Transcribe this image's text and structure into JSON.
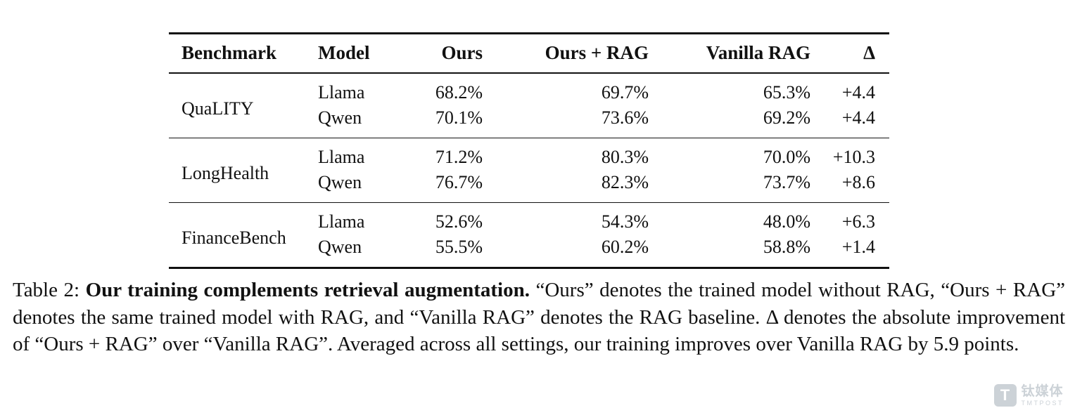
{
  "table": {
    "headers": [
      "Benchmark",
      "Model",
      "Ours",
      "Ours + RAG",
      "Vanilla RAG",
      "Δ"
    ],
    "groups": [
      {
        "benchmark": "QuaLITY",
        "rows": [
          {
            "model": "Llama",
            "ours": "68.2%",
            "ours_rag": "69.7%",
            "vanilla_rag": "65.3%",
            "delta": "+4.4"
          },
          {
            "model": "Qwen",
            "ours": "70.1%",
            "ours_rag": "73.6%",
            "vanilla_rag": "69.2%",
            "delta": "+4.4"
          }
        ]
      },
      {
        "benchmark": "LongHealth",
        "rows": [
          {
            "model": "Llama",
            "ours": "71.2%",
            "ours_rag": "80.3%",
            "vanilla_rag": "70.0%",
            "delta": "+10.3"
          },
          {
            "model": "Qwen",
            "ours": "76.7%",
            "ours_rag": "82.3%",
            "vanilla_rag": "73.7%",
            "delta": "+8.6"
          }
        ]
      },
      {
        "benchmark": "FinanceBench",
        "rows": [
          {
            "model": "Llama",
            "ours": "52.6%",
            "ours_rag": "54.3%",
            "vanilla_rag": "48.0%",
            "delta": "+6.3"
          },
          {
            "model": "Qwen",
            "ours": "55.5%",
            "ours_rag": "60.2%",
            "vanilla_rag": "58.8%",
            "delta": "+1.4"
          }
        ]
      }
    ]
  },
  "caption": {
    "prefix": "Table 2: ",
    "bold": "Our training complements retrieval augmentation.",
    "rest": " “Ours” denotes the trained model without RAG, “Ours + RAG” denotes the same trained model with RAG, and “Vanilla RAG” denotes the RAG baseline. Δ denotes the absolute improvement of “Ours + RAG” over “Vanilla RAG”. Averaged across all settings, our training improves over Vanilla RAG by 5.9 points."
  },
  "watermark": {
    "logo_letter": "T",
    "cn": "钛媒体",
    "en": "TMTPOST"
  }
}
